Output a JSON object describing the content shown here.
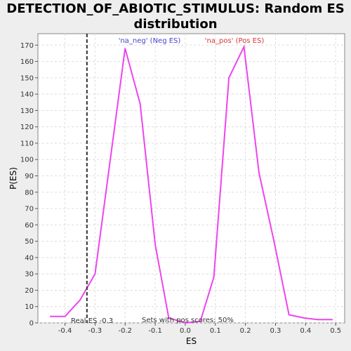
{
  "chart_data": {
    "type": "line",
    "title_line1": "DETECTION_OF_ABIOTIC_STIMULUS: Random ES",
    "title_line2": "distribution",
    "xlabel": "ES",
    "ylabel": "P(ES)",
    "xlim": [
      -0.49,
      0.53
    ],
    "ylim": [
      0,
      177
    ],
    "xticks": [
      -0.4,
      -0.3,
      -0.2,
      -0.1,
      0.0,
      0.1,
      0.2,
      0.3,
      0.4,
      0.5
    ],
    "xtick_labels": [
      "-0.4",
      "-0.3",
      "-0.2",
      "-0.1",
      "0.0",
      "0.1",
      "0.2",
      "0.3",
      "0.4",
      "0.5"
    ],
    "yticks": [
      0,
      10,
      20,
      30,
      40,
      50,
      60,
      70,
      80,
      90,
      100,
      110,
      120,
      130,
      140,
      150,
      160,
      170
    ],
    "ytick_labels": [
      "0",
      "10",
      "20",
      "30",
      "40",
      "50",
      "60",
      "70",
      "80",
      "90",
      "100",
      "110",
      "120",
      "130",
      "140",
      "150",
      "160",
      "170"
    ],
    "grid": true,
    "series": [
      {
        "color": "#ee44ee",
        "x": [
          -0.45,
          -0.4,
          -0.35,
          -0.3,
          -0.25,
          -0.2,
          -0.15,
          -0.1,
          -0.055,
          0.0,
          0.05,
          0.095,
          0.145,
          0.195,
          0.245,
          0.295,
          0.345,
          0.395,
          0.44,
          0.49
        ],
        "y": [
          4,
          4,
          14,
          30,
          99,
          168,
          134,
          48,
          3,
          0,
          1,
          28,
          150,
          169,
          92,
          50,
          5,
          3,
          2,
          2
        ]
      }
    ],
    "real_es": -0.327,
    "annotations": {
      "neg_label": "'na_neg' (Neg ES)",
      "pos_label": "'na_pos' (Pos ES)",
      "real_es_label": "Real ES -0.3",
      "pos_scores_label": "Sets with pos scores: 50%"
    },
    "colors": {
      "neg": "#4444cc",
      "pos": "#dd3333",
      "line": "#ee44ee"
    }
  }
}
